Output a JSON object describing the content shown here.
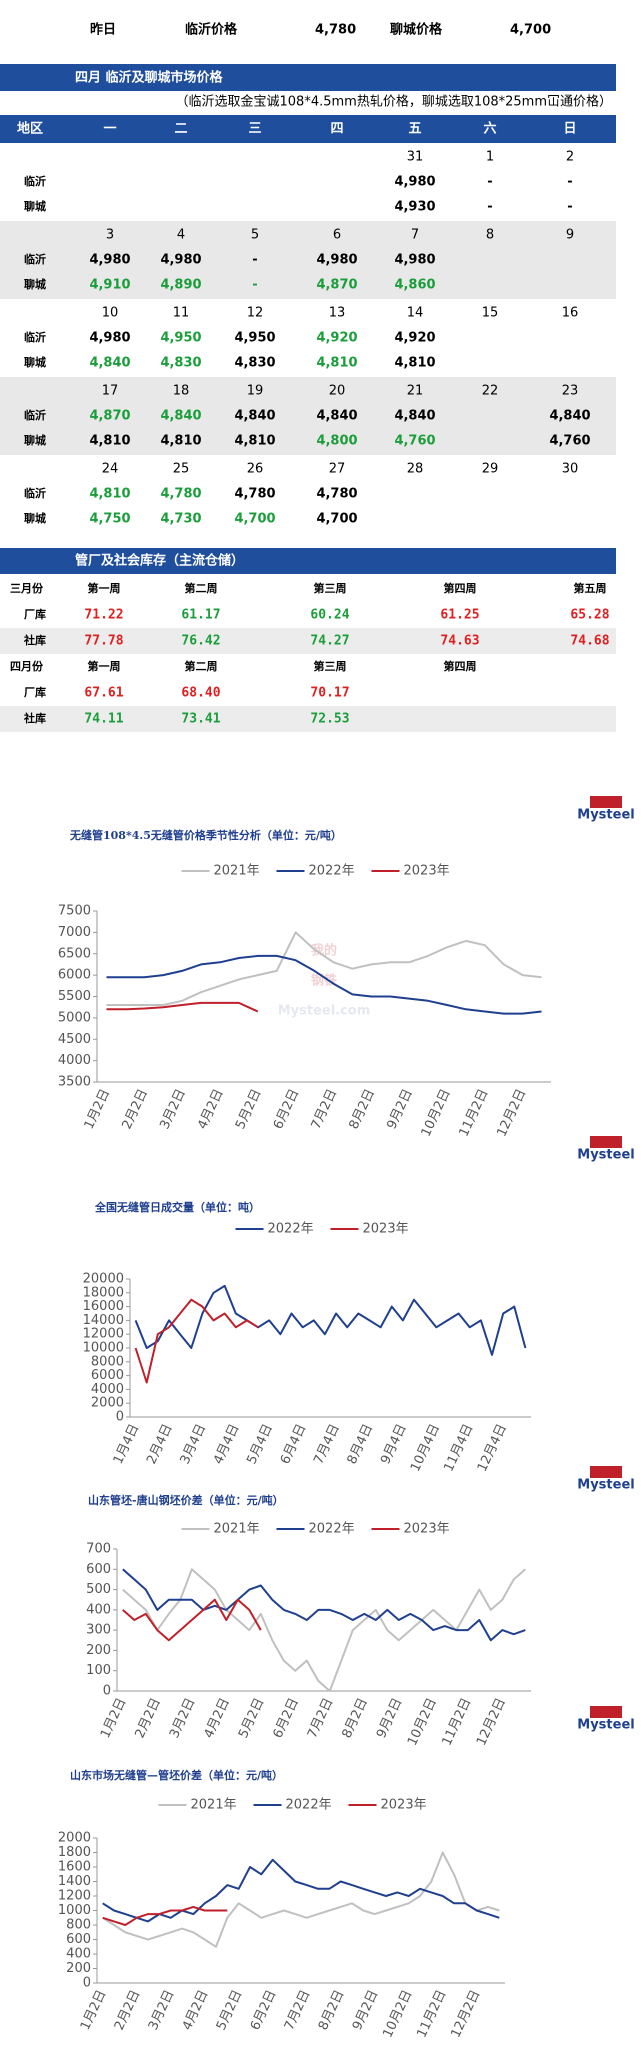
{
  "summary": {
    "yesterday": "昨日",
    "linyi_label": "临沂价格",
    "linyi_price": "4,780",
    "liaocheng_label": "聊城价格",
    "liaocheng_price": "4,700"
  },
  "calendar": {
    "title": "四月 临沂及聊城市场价格",
    "note": "（临沂选取金宝诚108*4.5mm热轧价格，聊城选取108*25mm冚通价格）",
    "header": [
      "地区",
      "一",
      "二",
      "三",
      "四",
      "五",
      "六",
      "日"
    ],
    "weeks": [
      {
        "dates": [
          null,
          null,
          null,
          null,
          "31",
          "1",
          "2"
        ],
        "rows": [
          {
            "label": "临沂",
            "values": [
              null,
              null,
              null,
              null,
              "4,980",
              "-",
              "-"
            ],
            "colors": [
              null,
              null,
              null,
              null,
              "#000000",
              "#000000",
              "#000000"
            ]
          },
          {
            "label": "聊城",
            "values": [
              null,
              null,
              null,
              null,
              "4,930",
              "-",
              "-"
            ],
            "colors": [
              null,
              null,
              null,
              null,
              "#000000",
              "#000000",
              "#000000"
            ]
          }
        ]
      },
      {
        "dates": [
          "3",
          "4",
          "5",
          "6",
          "7",
          "8",
          "9"
        ],
        "rows": [
          {
            "label": "临沂",
            "values": [
              "4,980",
              "4,980",
              "-",
              "4,980",
              "4,980",
              null,
              null
            ],
            "colors": [
              "#000000",
              "#000000",
              "#000000",
              "#000000",
              "#000000",
              null,
              null
            ]
          },
          {
            "label": "聊城",
            "values": [
              "4,910",
              "4,890",
              "-",
              "4,870",
              "4,860",
              null,
              null
            ],
            "colors": [
              "#1a9e3a",
              "#1a9e3a",
              "#1a9e3a",
              "#1a9e3a",
              "#1a9e3a",
              null,
              null
            ]
          }
        ]
      },
      {
        "dates": [
          "10",
          "11",
          "12",
          "13",
          "14",
          "15",
          "16"
        ],
        "rows": [
          {
            "label": "临沂",
            "values": [
              "4,980",
              "4,950",
              "4,950",
              "4,920",
              "4,920",
              null,
              null
            ],
            "colors": [
              "#000000",
              "#1a9e3a",
              "#000000",
              "#1a9e3a",
              "#000000",
              null,
              null
            ]
          },
          {
            "label": "聊城",
            "values": [
              "4,840",
              "4,830",
              "4,830",
              "4,810",
              "4,810",
              null,
              null
            ],
            "colors": [
              "#1a9e3a",
              "#1a9e3a",
              "#000000",
              "#1a9e3a",
              "#000000",
              null,
              null
            ]
          }
        ]
      },
      {
        "dates": [
          "17",
          "18",
          "19",
          "20",
          "21",
          "22",
          "23"
        ],
        "rows": [
          {
            "label": "临沂",
            "values": [
              "4,870",
              "4,840",
              "4,840",
              "4,840",
              "4,840",
              null,
              "4,840"
            ],
            "colors": [
              "#1a9e3a",
              "#1a9e3a",
              "#000000",
              "#000000",
              "#000000",
              null,
              "#000000"
            ]
          },
          {
            "label": "聊城",
            "values": [
              "4,810",
              "4,810",
              "4,810",
              "4,800",
              "4,760",
              null,
              "4,760"
            ],
            "colors": [
              "#000000",
              "#000000",
              "#000000",
              "#1a9e3a",
              "#1a9e3a",
              null,
              "#000000"
            ]
          }
        ]
      },
      {
        "dates": [
          "24",
          "25",
          "26",
          "27",
          "28",
          "29",
          "30"
        ],
        "rows": [
          {
            "label": "临沂",
            "values": [
              "4,810",
              "4,780",
              "4,780",
              "4,780",
              null,
              null,
              null
            ],
            "colors": [
              "#1a9e3a",
              "#1a9e3a",
              "#000000",
              "#000000",
              null,
              null,
              null
            ]
          },
          {
            "label": "聊城",
            "values": [
              "4,750",
              "4,730",
              "4,700",
              "4,700",
              null,
              null,
              null
            ],
            "colors": [
              "#1a9e3a",
              "#1a9e3a",
              "#1a9e3a",
              "#000000",
              null,
              null,
              null
            ]
          }
        ]
      }
    ]
  },
  "inventory": {
    "title": "管厂及社会库存（主流仓储）",
    "blocks": [
      {
        "header": [
          "三月份",
          "第一周",
          "第二周",
          "第三周",
          "第四周",
          "第五周"
        ],
        "rows": [
          {
            "label": "厂库",
            "values": [
              "71.22",
              "61.17",
              "60.24",
              "61.25",
              "65.28"
            ],
            "colors": [
              "#e02020",
              "#1a9e3a",
              "#1a9e3a",
              "#e02020",
              "#e02020"
            ]
          },
          {
            "label": "社库",
            "values": [
              "77.78",
              "76.42",
              "74.27",
              "74.63",
              "74.68"
            ],
            "colors": [
              "#e02020",
              "#1a9e3a",
              "#1a9e3a",
              "#e02020",
              "#e02020"
            ]
          }
        ]
      },
      {
        "header": [
          "四月份",
          "第一周",
          "第二周",
          "第三周",
          "第四周"
        ],
        "rows": [
          {
            "label": "厂库",
            "values": [
              "67.61",
              "68.40",
              "70.17"
            ],
            "colors": [
              "#e02020",
              "#e02020",
              "#e02020"
            ]
          },
          {
            "label": "社库",
            "values": [
              "74.11",
              "73.41",
              "72.53"
            ],
            "colors": [
              "#1a9e3a",
              "#1a9e3a",
              "#1a9e3a"
            ]
          }
        ]
      }
    ]
  },
  "chart_data": [
    {
      "type": "line",
      "title": "无缝管108*4.5无缝管价格季节性分析（单位：元/吨）",
      "logo": "Mysteel",
      "watermark": [
        "我的",
        "钢铁",
        "Mysteel.com"
      ],
      "categories": [
        "1月2日",
        null,
        "2月2日",
        null,
        "3月2日",
        null,
        "4月2日",
        null,
        "5月2日",
        null,
        "6月2日",
        null,
        "7月2日",
        null,
        "8月2日",
        null,
        "9月2日",
        null,
        "10月2日",
        null,
        "11月2日",
        null,
        "12月2日",
        null
      ],
      "series": [
        {
          "name": "2021年",
          "color": "#c0c0c0",
          "values": [
            5300,
            5300,
            5300,
            5300,
            5400,
            5600,
            5750,
            5900,
            6000,
            6100,
            7000,
            6600,
            6300,
            6150,
            6250,
            6300,
            6300,
            6450,
            6650,
            6800,
            6700,
            6250,
            6000,
            5950
          ]
        },
        {
          "name": "2022年",
          "color": "#1f3f8f",
          "values": [
            5950,
            5950,
            5950,
            6000,
            6100,
            6250,
            6300,
            6400,
            6450,
            6450,
            6350,
            6100,
            5800,
            5550,
            5500,
            5500,
            5450,
            5400,
            5300,
            5200,
            5150,
            5100,
            5100,
            5150
          ]
        },
        {
          "name": "2023年",
          "color": "#c0202a",
          "values": [
            5200,
            5200,
            5220,
            5250,
            5300,
            5350,
            5350,
            5350,
            5150,
            null,
            null,
            null,
            null,
            null,
            null,
            null,
            null,
            null,
            null,
            null,
            null,
            null,
            null,
            null
          ]
        }
      ],
      "ylim": [
        3500,
        7500
      ],
      "yticks": [
        3500,
        4000,
        4500,
        5000,
        5500,
        6000,
        6500,
        7000,
        7500
      ]
    },
    {
      "type": "line",
      "title": "全国无缝管日成交量（单位：吨）",
      "logo": "Mysteel",
      "categories": [
        "1月4日",
        null,
        null,
        "2月4日",
        null,
        null,
        "3月4日",
        null,
        null,
        "4月4日",
        null,
        null,
        "5月4日",
        null,
        null,
        "6月4日",
        null,
        null,
        "7月4日",
        null,
        null,
        "8月4日",
        null,
        null,
        "9月4日",
        null,
        null,
        "10月4日",
        null,
        null,
        "11月4日",
        null,
        null,
        "12月4日",
        null,
        null
      ],
      "series": [
        {
          "name": "2022年",
          "color": "#1f3f8f",
          "values": [
            14000,
            10000,
            11000,
            14000,
            12000,
            10000,
            15000,
            18000,
            19000,
            15000,
            14000,
            13000,
            14000,
            12000,
            15000,
            13000,
            14000,
            12000,
            15000,
            13000,
            15000,
            14000,
            13000,
            16000,
            14000,
            17000,
            15000,
            13000,
            14000,
            15000,
            13000,
            14000,
            9000,
            15000,
            16000,
            10000
          ]
        },
        {
          "name": "2023年",
          "color": "#c0202a",
          "values": [
            10000,
            5000,
            12000,
            13000,
            15000,
            17000,
            16000,
            14000,
            15000,
            13000,
            14000,
            13000,
            null,
            null,
            null,
            null,
            null,
            null,
            null,
            null,
            null,
            null,
            null,
            null,
            null,
            null,
            null,
            null,
            null,
            null,
            null,
            null,
            null,
            null,
            null,
            null
          ]
        }
      ],
      "ylim": [
        0,
        20000
      ],
      "yticks": [
        0,
        2000,
        4000,
        6000,
        8000,
        10000,
        12000,
        14000,
        16000,
        18000,
        20000
      ]
    },
    {
      "type": "line",
      "title": "山东管坯-唐山钢坯价差（单位：元/吨）",
      "logo": "Mysteel",
      "categories": [
        "1月2日",
        null,
        null,
        "2月2日",
        null,
        null,
        "3月2日",
        null,
        null,
        "4月2日",
        null,
        null,
        "5月2日",
        null,
        null,
        "6月2日",
        null,
        null,
        "7月2日",
        null,
        null,
        "8月2日",
        null,
        null,
        "9月2日",
        null,
        null,
        "10月2日",
        null,
        null,
        "11月2日",
        null,
        null,
        "12月2日",
        null,
        null
      ],
      "series": [
        {
          "name": "2021年",
          "color": "#c0c0c0",
          "values": [
            500,
            450,
            400,
            300,
            380,
            450,
            600,
            550,
            500,
            400,
            350,
            300,
            380,
            250,
            150,
            100,
            150,
            50,
            0,
            150,
            300,
            350,
            400,
            300,
            250,
            300,
            350,
            400,
            350,
            300,
            400,
            500,
            400,
            450,
            550,
            600
          ]
        },
        {
          "name": "2022年",
          "color": "#1f3f8f",
          "values": [
            600,
            550,
            500,
            400,
            450,
            450,
            450,
            400,
            420,
            400,
            450,
            500,
            520,
            450,
            400,
            380,
            350,
            400,
            400,
            380,
            350,
            380,
            350,
            400,
            350,
            380,
            350,
            300,
            320,
            300,
            300,
            350,
            250,
            300,
            280,
            300
          ]
        },
        {
          "name": "2023年",
          "color": "#c0202a",
          "values": [
            400,
            350,
            380,
            300,
            250,
            300,
            350,
            400,
            450,
            350,
            450,
            400,
            300,
            null,
            null,
            null,
            null,
            null,
            null,
            null,
            null,
            null,
            null,
            null,
            null,
            null,
            null,
            null,
            null,
            null,
            null,
            null,
            null,
            null,
            null,
            null
          ]
        }
      ],
      "ylim": [
        0,
        700
      ],
      "yticks": [
        0,
        100,
        200,
        300,
        400,
        500,
        600,
        700
      ]
    },
    {
      "type": "line",
      "title": "山东市场无缝管—管坯价差（单位：元/吨）",
      "logo": "Mysteel",
      "categories": [
        "1月2日",
        null,
        null,
        "2月2日",
        null,
        null,
        "3月2日",
        null,
        null,
        "4月2日",
        null,
        null,
        "5月2日",
        null,
        null,
        "6月2日",
        null,
        null,
        "7月2日",
        null,
        null,
        "8月2日",
        null,
        null,
        "9月2日",
        null,
        null,
        "10月2日",
        null,
        null,
        "11月2日",
        null,
        null,
        "12月2日",
        null,
        null
      ],
      "series": [
        {
          "name": "2021年",
          "color": "#c0c0c0",
          "values": [
            900,
            800,
            700,
            650,
            600,
            650,
            700,
            750,
            700,
            600,
            500,
            900,
            1100,
            1000,
            900,
            950,
            1000,
            950,
            900,
            950,
            1000,
            1050,
            1100,
            1000,
            950,
            1000,
            1050,
            1100,
            1200,
            1400,
            1800,
            1500,
            1100,
            1000,
            1050,
            1000
          ]
        },
        {
          "name": "2022年",
          "color": "#1f3f8f",
          "values": [
            1100,
            1000,
            950,
            900,
            850,
            950,
            900,
            1000,
            950,
            1100,
            1200,
            1350,
            1300,
            1600,
            1500,
            1700,
            1550,
            1400,
            1350,
            1300,
            1300,
            1400,
            1350,
            1300,
            1250,
            1200,
            1250,
            1200,
            1300,
            1250,
            1200,
            1100,
            1100,
            1000,
            950,
            900
          ]
        },
        {
          "name": "2023年",
          "color": "#c0202a",
          "values": [
            900,
            850,
            800,
            900,
            950,
            950,
            1000,
            1000,
            1050,
            1000,
            1000,
            1000,
            null,
            null,
            null,
            null,
            null,
            null,
            null,
            null,
            null,
            null,
            null,
            null,
            null,
            null,
            null,
            null,
            null,
            null,
            null,
            null,
            null,
            null,
            null,
            null
          ]
        }
      ],
      "ylim": [
        0,
        2000
      ],
      "yticks": [
        0,
        200,
        400,
        600,
        800,
        1000,
        1200,
        1400,
        1600,
        1800,
        2000
      ]
    }
  ]
}
